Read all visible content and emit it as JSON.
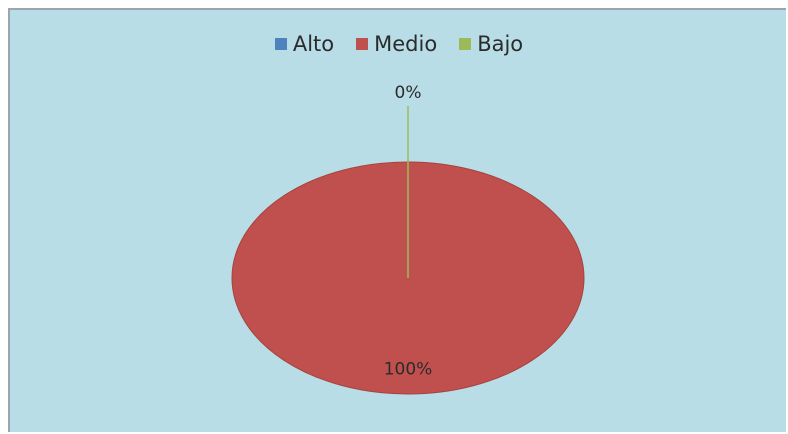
{
  "chart_data": {
    "type": "pie",
    "categories": [
      "Alto",
      "Medio",
      "Bajo"
    ],
    "values": [
      0,
      100,
      0
    ],
    "data_labels": [
      "",
      "100%",
      "0%"
    ],
    "colors": [
      "#4f81bd",
      "#c0504d",
      "#9bbb59"
    ],
    "title": "",
    "legend_position": "top"
  }
}
